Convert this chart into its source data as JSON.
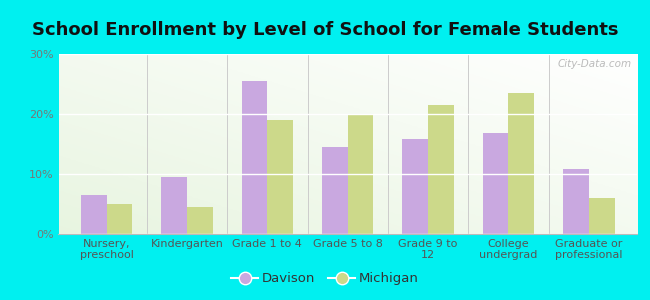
{
  "title": "School Enrollment by Level of School for Female Students",
  "categories": [
    "Nursery,\npreschool",
    "Kindergarten",
    "Grade 1 to 4",
    "Grade 5 to 8",
    "Grade 9 to\n12",
    "College\nundergrad",
    "Graduate or\nprofessional"
  ],
  "davison": [
    6.5,
    9.5,
    25.5,
    14.5,
    15.8,
    16.8,
    10.8
  ],
  "michigan": [
    5.0,
    4.5,
    19.0,
    20.0,
    21.5,
    23.5,
    6.0
  ],
  "davison_color": "#c9a8e0",
  "michigan_color": "#ccd98a",
  "background_color": "#00f0f0",
  "ylim": [
    0,
    30
  ],
  "yticks": [
    0,
    10,
    20,
    30
  ],
  "bar_width": 0.32,
  "legend_labels": [
    "Davison",
    "Michigan"
  ],
  "title_fontsize": 13,
  "tick_fontsize": 8,
  "legend_fontsize": 9.5,
  "watermark": "City-Data.com"
}
